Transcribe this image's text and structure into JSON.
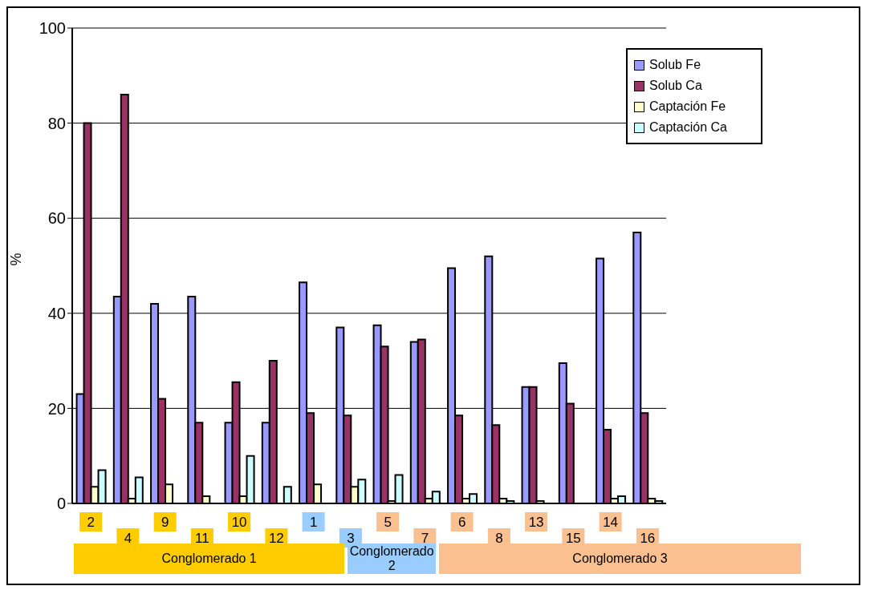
{
  "chart_data": {
    "type": "bar",
    "ylabel": "%",
    "categories": [
      "2",
      "4",
      "9",
      "11",
      "10",
      "12",
      "1",
      "3",
      "5",
      "7",
      "6",
      "8",
      "13",
      "15",
      "14",
      "16"
    ],
    "series": [
      {
        "name": "Solub Fe",
        "color": "#9999ff",
        "values": [
          23,
          43.5,
          42,
          43.5,
          17,
          17,
          46.5,
          37,
          37.5,
          34,
          49.5,
          52,
          24.5,
          29.5,
          51.5,
          57
        ]
      },
      {
        "name": "Solub Ca",
        "color": "#993366",
        "values": [
          80,
          86,
          22,
          17,
          25.5,
          30,
          19,
          18.5,
          33,
          34.5,
          18.5,
          16.5,
          24.5,
          21,
          15.5,
          19
        ]
      },
      {
        "name": "Captación Fe",
        "color": "#ffffcc",
        "values": [
          3.5,
          1,
          4,
          1.5,
          1.5,
          0,
          4,
          3.5,
          0.5,
          1,
          1,
          1,
          0.5,
          0,
          1,
          1
        ]
      },
      {
        "name": "Captación Ca",
        "color": "#ccffff",
        "values": [
          7,
          5.5,
          0,
          0,
          10,
          3.5,
          0,
          5,
          6,
          2.5,
          2,
          0.5,
          0,
          0,
          1.5,
          0.5
        ]
      }
    ],
    "ylim": [
      0,
      100
    ],
    "yticks": [
      0,
      20,
      40,
      60,
      80,
      100
    ],
    "grid": "y",
    "legend": "top right",
    "annotations": [
      "Conglomerado 1",
      "Conglomerado 2",
      "Conglomerado 3"
    ]
  }
}
